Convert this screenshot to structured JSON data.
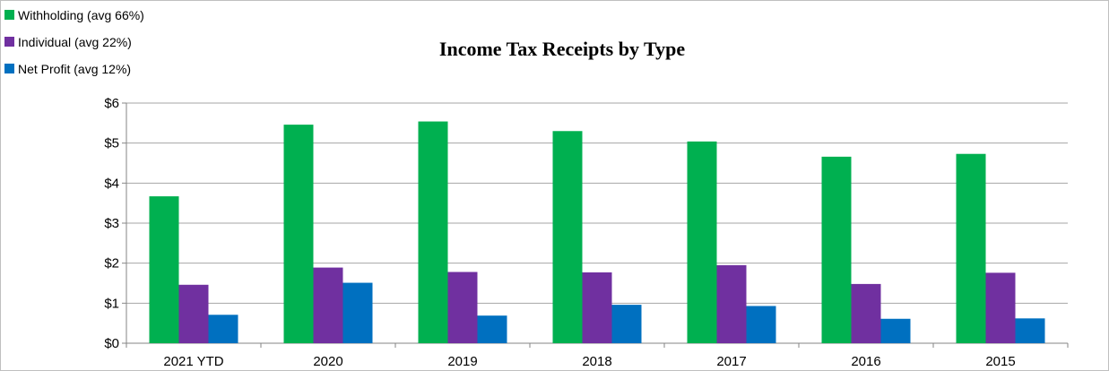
{
  "chart_data": {
    "type": "bar",
    "title": "Income Tax Receipts by Type",
    "xlabel": "",
    "ylabel": "",
    "categories": [
      "2021 YTD",
      "2020",
      "2019",
      "2018",
      "2017",
      "2016",
      "2015"
    ],
    "series": [
      {
        "name": "Withholding (avg 66%)",
        "color": "#00b050",
        "values": [
          3.67,
          5.46,
          5.54,
          5.3,
          5.04,
          4.66,
          4.73
        ]
      },
      {
        "name": "Individual (avg 22%)",
        "color": "#7030a0",
        "values": [
          1.46,
          1.89,
          1.78,
          1.77,
          1.95,
          1.48,
          1.76
        ]
      },
      {
        "name": "Net Profit (avg 12%)",
        "color": "#0070c0",
        "values": [
          0.71,
          1.51,
          0.69,
          0.96,
          0.93,
          0.61,
          0.62
        ]
      }
    ],
    "ylim": [
      0,
      6
    ],
    "yticks": [
      0,
      1,
      2,
      3,
      4,
      5,
      6
    ],
    "ytick_labels": [
      "$0",
      "$1",
      "$2",
      "$3",
      "$4",
      "$5",
      "$6"
    ],
    "grid": true,
    "legend_position": "top-left"
  }
}
